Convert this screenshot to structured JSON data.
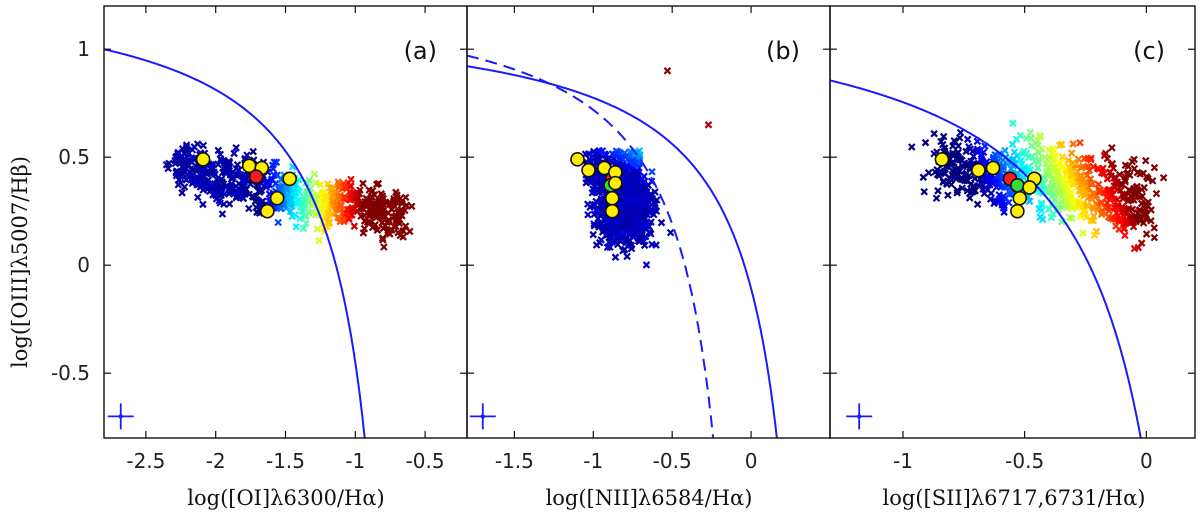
{
  "chart_data": [
    {
      "type": "scatter",
      "panel_label": "(a)",
      "xlabel": "log([OI]λ6300/Hα)",
      "ylabel": "log([OIII]λ5007/Hβ)",
      "xlim": [
        -2.8,
        -0.2
      ],
      "ylim": [
        -0.8,
        1.2
      ],
      "xticks": [
        -2.5,
        -2,
        -1.5,
        -1,
        -0.5
      ],
      "xtick_labels": [
        "-2.5",
        "-2",
        "-1.5",
        "-1",
        "-0.5"
      ],
      "yticks": [
        -0.5,
        0,
        0.5,
        1
      ],
      "ytick_labels": [
        "-0.5",
        "0",
        "0.5",
        "1"
      ],
      "curves": [
        {
          "style": "solid",
          "color": "#1a1aff",
          "formula": "0.73/(x+0.59)+1.33",
          "x_range": [
            -2.8,
            -0.93
          ]
        }
      ],
      "cloud": {
        "marker": "x",
        "colormap": "jet",
        "x_range": [
          -2.35,
          -0.62
        ],
        "y_range": [
          -0.1,
          0.55
        ]
      },
      "highlight_points": [
        {
          "x": -2.09,
          "y": 0.49,
          "color": "#ffee00"
        },
        {
          "x": -1.76,
          "y": 0.46,
          "color": "#ffee00"
        },
        {
          "x": -1.67,
          "y": 0.45,
          "color": "#ffee00"
        },
        {
          "x": -1.71,
          "y": 0.41,
          "color": "#ff1a1a"
        },
        {
          "x": -1.47,
          "y": 0.4,
          "color": "#ffee00"
        },
        {
          "x": -1.56,
          "y": 0.31,
          "color": "#ffee00"
        },
        {
          "x": -1.63,
          "y": 0.25,
          "color": "#ffee00"
        }
      ],
      "error_bar": {
        "x": -2.68,
        "y": -0.7
      }
    },
    {
      "type": "scatter",
      "panel_label": "(b)",
      "xlabel": "log([NII]λ6584/Hα)",
      "ylabel": "",
      "xlim": [
        -1.8,
        0.5
      ],
      "ylim": [
        -0.8,
        1.2
      ],
      "xticks": [
        -1.5,
        -1,
        -0.5,
        0
      ],
      "xtick_labels": [
        "-1.5",
        "-1",
        "-0.5",
        "0"
      ],
      "yticks": [],
      "ytick_labels": [],
      "curves": [
        {
          "style": "solid",
          "color": "#1a1aff",
          "formula": "0.61/(x-0.47)+1.19",
          "x_range": [
            -1.8,
            0.2
          ]
        },
        {
          "style": "dashed",
          "color": "#1a1aff",
          "formula": "0.61/(x-0.05)+1.3",
          "x_range": [
            -1.8,
            -0.23
          ]
        }
      ],
      "cloud": {
        "marker": "x",
        "colormap": "jet",
        "x_range": [
          -1.2,
          -0.3
        ],
        "y_range": [
          -0.1,
          0.9
        ]
      },
      "highlight_points": [
        {
          "x": -1.1,
          "y": 0.49,
          "color": "#ffee00"
        },
        {
          "x": -1.03,
          "y": 0.44,
          "color": "#ffee00"
        },
        {
          "x": -0.93,
          "y": 0.45,
          "color": "#ffee00"
        },
        {
          "x": -0.88,
          "y": 0.4,
          "color": "#ff1a1a"
        },
        {
          "x": -0.86,
          "y": 0.43,
          "color": "#ffee00"
        },
        {
          "x": -0.89,
          "y": 0.37,
          "color": "#33dd33"
        },
        {
          "x": -0.86,
          "y": 0.38,
          "color": "#ffee00"
        },
        {
          "x": -0.88,
          "y": 0.31,
          "color": "#ffee00"
        },
        {
          "x": -0.88,
          "y": 0.25,
          "color": "#ffee00"
        }
      ],
      "error_bar": {
        "x": -1.7,
        "y": -0.7
      }
    },
    {
      "type": "scatter",
      "panel_label": "(c)",
      "xlabel": "log([SII]λ6717,6731/Hα)",
      "ylabel": "",
      "xlim": [
        -1.3,
        0.2
      ],
      "ylim": [
        -0.8,
        1.2
      ],
      "xticks": [
        -1,
        -0.5,
        0
      ],
      "xtick_labels": [
        "-1",
        "-0.5",
        "0"
      ],
      "yticks": [],
      "ytick_labels": [],
      "curves": [
        {
          "style": "solid",
          "color": "#1a1aff",
          "formula": "0.72/(x-0.32)+1.3",
          "x_range": [
            -1.3,
            -0.02
          ]
        }
      ],
      "cloud": {
        "marker": "x",
        "colormap": "jet",
        "x_range": [
          -0.9,
          0.08
        ],
        "y_range": [
          -0.1,
          0.9
        ]
      },
      "highlight_points": [
        {
          "x": -0.84,
          "y": 0.49,
          "color": "#ffee00"
        },
        {
          "x": -0.69,
          "y": 0.44,
          "color": "#ffee00"
        },
        {
          "x": -0.63,
          "y": 0.45,
          "color": "#ffee00"
        },
        {
          "x": -0.56,
          "y": 0.4,
          "color": "#ff1a1a"
        },
        {
          "x": -0.53,
          "y": 0.37,
          "color": "#33dd33"
        },
        {
          "x": -0.46,
          "y": 0.4,
          "color": "#ffee00"
        },
        {
          "x": -0.48,
          "y": 0.36,
          "color": "#ffee00"
        },
        {
          "x": -0.52,
          "y": 0.31,
          "color": "#ffee00"
        },
        {
          "x": -0.53,
          "y": 0.25,
          "color": "#ffee00"
        }
      ],
      "error_bar": {
        "x": -1.18,
        "y": -0.7
      }
    }
  ]
}
